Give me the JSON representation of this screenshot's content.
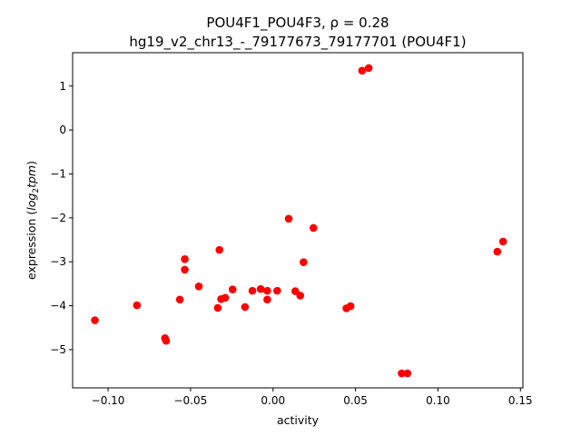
{
  "chart_data": {
    "type": "scatter",
    "title_line1": "POU4F1_POU4F3, ρ = 0.28",
    "title_line2": "hg19_v2_chr13_-_79177673_79177701 (POU4F1)",
    "xlabel": "activity",
    "ylabel_prefix": "expression (",
    "ylabel_log": "log",
    "ylabel_sub": "2",
    "ylabel_tpm": "tpm",
    "ylabel_suffix": ")",
    "xlim": [
      -0.1215,
      0.1515
    ],
    "ylim": [
      -5.87,
      1.76
    ],
    "xticks": [
      -0.1,
      -0.05,
      0.0,
      0.05,
      0.1,
      0.15
    ],
    "xtick_labels": [
      "−0.10",
      "−0.05",
      "0.00",
      "0.05",
      "0.10",
      "0.15"
    ],
    "yticks": [
      1,
      0,
      -1,
      -2,
      -3,
      -4,
      -5
    ],
    "ytick_labels": [
      "1",
      "0",
      "−1",
      "−2",
      "−3",
      "−4",
      "−5"
    ],
    "grid": false,
    "marker_color": "#ff0000",
    "points": [
      {
        "x": -0.108,
        "y": -4.33
      },
      {
        "x": -0.0825,
        "y": -3.99
      },
      {
        "x": -0.0655,
        "y": -4.74
      },
      {
        "x": -0.0648,
        "y": -4.8
      },
      {
        "x": -0.0565,
        "y": -3.86
      },
      {
        "x": -0.0535,
        "y": -2.94
      },
      {
        "x": -0.0535,
        "y": -3.18
      },
      {
        "x": -0.045,
        "y": -3.56
      },
      {
        "x": -0.0335,
        "y": -4.05
      },
      {
        "x": -0.0325,
        "y": -2.73
      },
      {
        "x": -0.0315,
        "y": -3.85
      },
      {
        "x": -0.029,
        "y": -3.82
      },
      {
        "x": -0.0245,
        "y": -3.63
      },
      {
        "x": -0.017,
        "y": -4.03
      },
      {
        "x": -0.0125,
        "y": -3.66
      },
      {
        "x": -0.0075,
        "y": -3.62
      },
      {
        "x": -0.0035,
        "y": -3.66
      },
      {
        "x": -0.0035,
        "y": -3.86
      },
      {
        "x": 0.0025,
        "y": -3.66
      },
      {
        "x": 0.0095,
        "y": -2.02
      },
      {
        "x": 0.0135,
        "y": -3.67
      },
      {
        "x": 0.0165,
        "y": -3.77
      },
      {
        "x": 0.0185,
        "y": -3.01
      },
      {
        "x": 0.0245,
        "y": -2.23
      },
      {
        "x": 0.0445,
        "y": -4.06
      },
      {
        "x": 0.047,
        "y": -4.01
      },
      {
        "x": 0.054,
        "y": 1.35
      },
      {
        "x": 0.058,
        "y": 1.41
      },
      {
        "x": 0.078,
        "y": -5.54
      },
      {
        "x": 0.0815,
        "y": -5.54
      },
      {
        "x": 0.136,
        "y": -2.77
      },
      {
        "x": 0.1395,
        "y": -2.54
      }
    ]
  }
}
